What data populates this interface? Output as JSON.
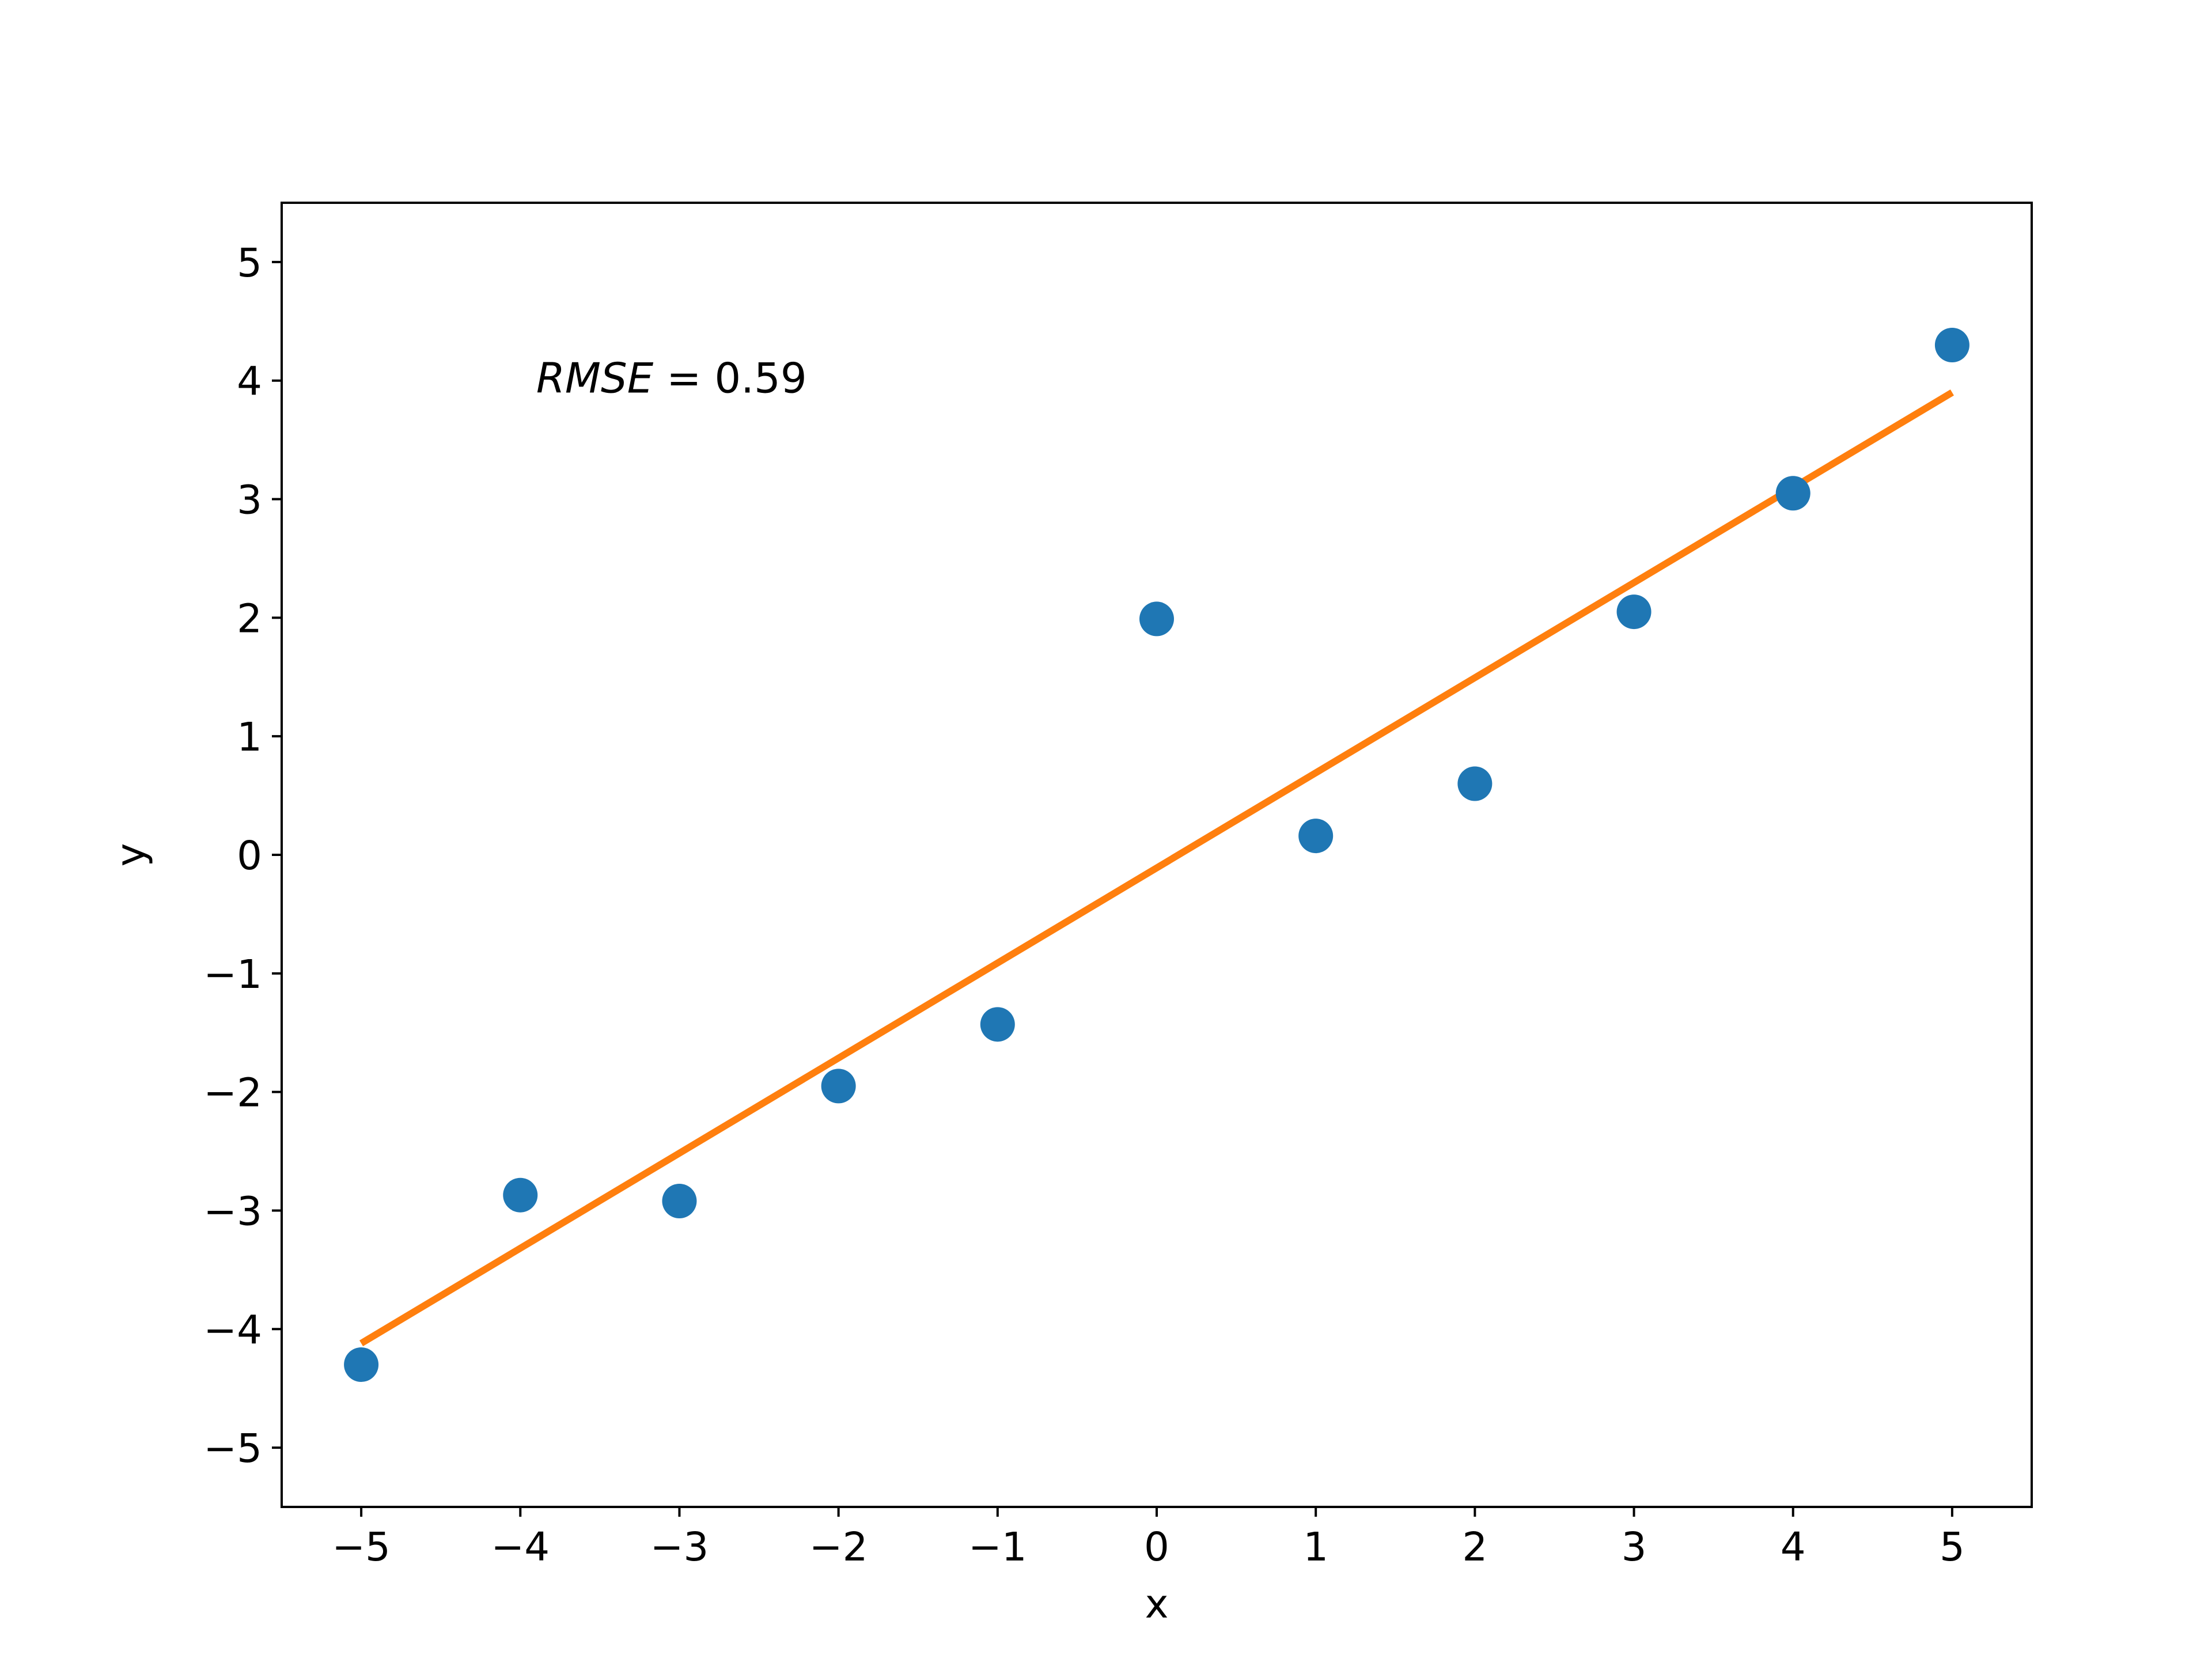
{
  "chart_data": {
    "type": "scatter",
    "title": "",
    "xlabel": "x",
    "ylabel": "y",
    "xlim": [
      -5.5,
      5.5
    ],
    "ylim": [
      -5.5,
      5.5
    ],
    "xticks": [
      -5,
      -4,
      -3,
      -2,
      -1,
      0,
      1,
      2,
      3,
      4,
      5
    ],
    "yticks": [
      -5,
      -4,
      -3,
      -2,
      -1,
      0,
      1,
      2,
      3,
      4,
      5
    ],
    "xtick_labels": [
      "−5",
      "−4",
      "−3",
      "−2",
      "−1",
      "0",
      "1",
      "2",
      "3",
      "4",
      "5"
    ],
    "ytick_labels": [
      "−5",
      "−4",
      "−3",
      "−2",
      "−1",
      "0",
      "1",
      "2",
      "3",
      "4",
      "5"
    ],
    "grid": false,
    "series": [
      {
        "type": "scatter",
        "color": "#1f77b4",
        "x": [
          -5,
          -4,
          -3,
          -2,
          -1,
          0,
          1,
          2,
          3,
          4,
          5
        ],
        "y": [
          -4.3,
          -2.87,
          -2.92,
          -1.95,
          -1.43,
          1.99,
          0.16,
          0.6,
          2.05,
          3.05,
          4.3
        ]
      },
      {
        "type": "line",
        "color": "#ff7f0e",
        "x": [
          -5,
          5
        ],
        "y": [
          -4.12,
          3.9
        ]
      }
    ],
    "annotation": {
      "var_text": "RMSE",
      "rest_text": " = 0.59",
      "x": -3.9,
      "y": 3.9
    }
  }
}
